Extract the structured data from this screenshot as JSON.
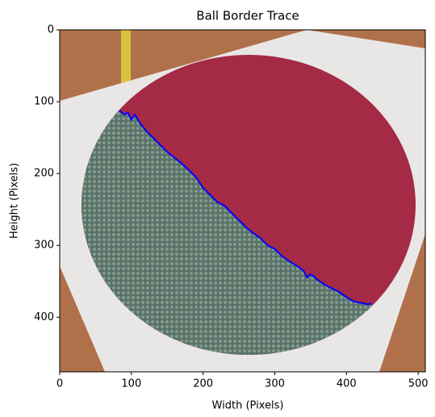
{
  "chart_data": {
    "type": "line",
    "title": "Ball Border Trace",
    "x_label": "Width (Pixels)",
    "y_label": "Height (Pixels)",
    "xlim": [
      0,
      510
    ],
    "ylim": [
      476,
      0
    ],
    "xticks": [
      0,
      100,
      200,
      300,
      400,
      500
    ],
    "yticks": [
      0,
      100,
      200,
      300,
      400
    ],
    "series": [
      {
        "color": "#0000ff",
        "x": [
          83,
          90,
          95,
          100,
          105,
          112,
          120,
          130,
          140,
          150,
          160,
          170,
          180,
          190,
          200,
          210,
          220,
          230,
          240,
          250,
          260,
          270,
          280,
          290,
          300,
          310,
          320,
          330,
          340,
          345,
          350,
          360,
          370,
          380,
          390,
          400,
          410,
          420,
          430,
          435
        ],
        "values": [
          112,
          118,
          115,
          125,
          118,
          130,
          140,
          150,
          160,
          170,
          178,
          186,
          195,
          205,
          220,
          230,
          240,
          245,
          255,
          265,
          275,
          283,
          290,
          300,
          305,
          315,
          322,
          328,
          335,
          345,
          340,
          348,
          355,
          360,
          365,
          372,
          378,
          380,
          382,
          381
        ]
      }
    ]
  }
}
